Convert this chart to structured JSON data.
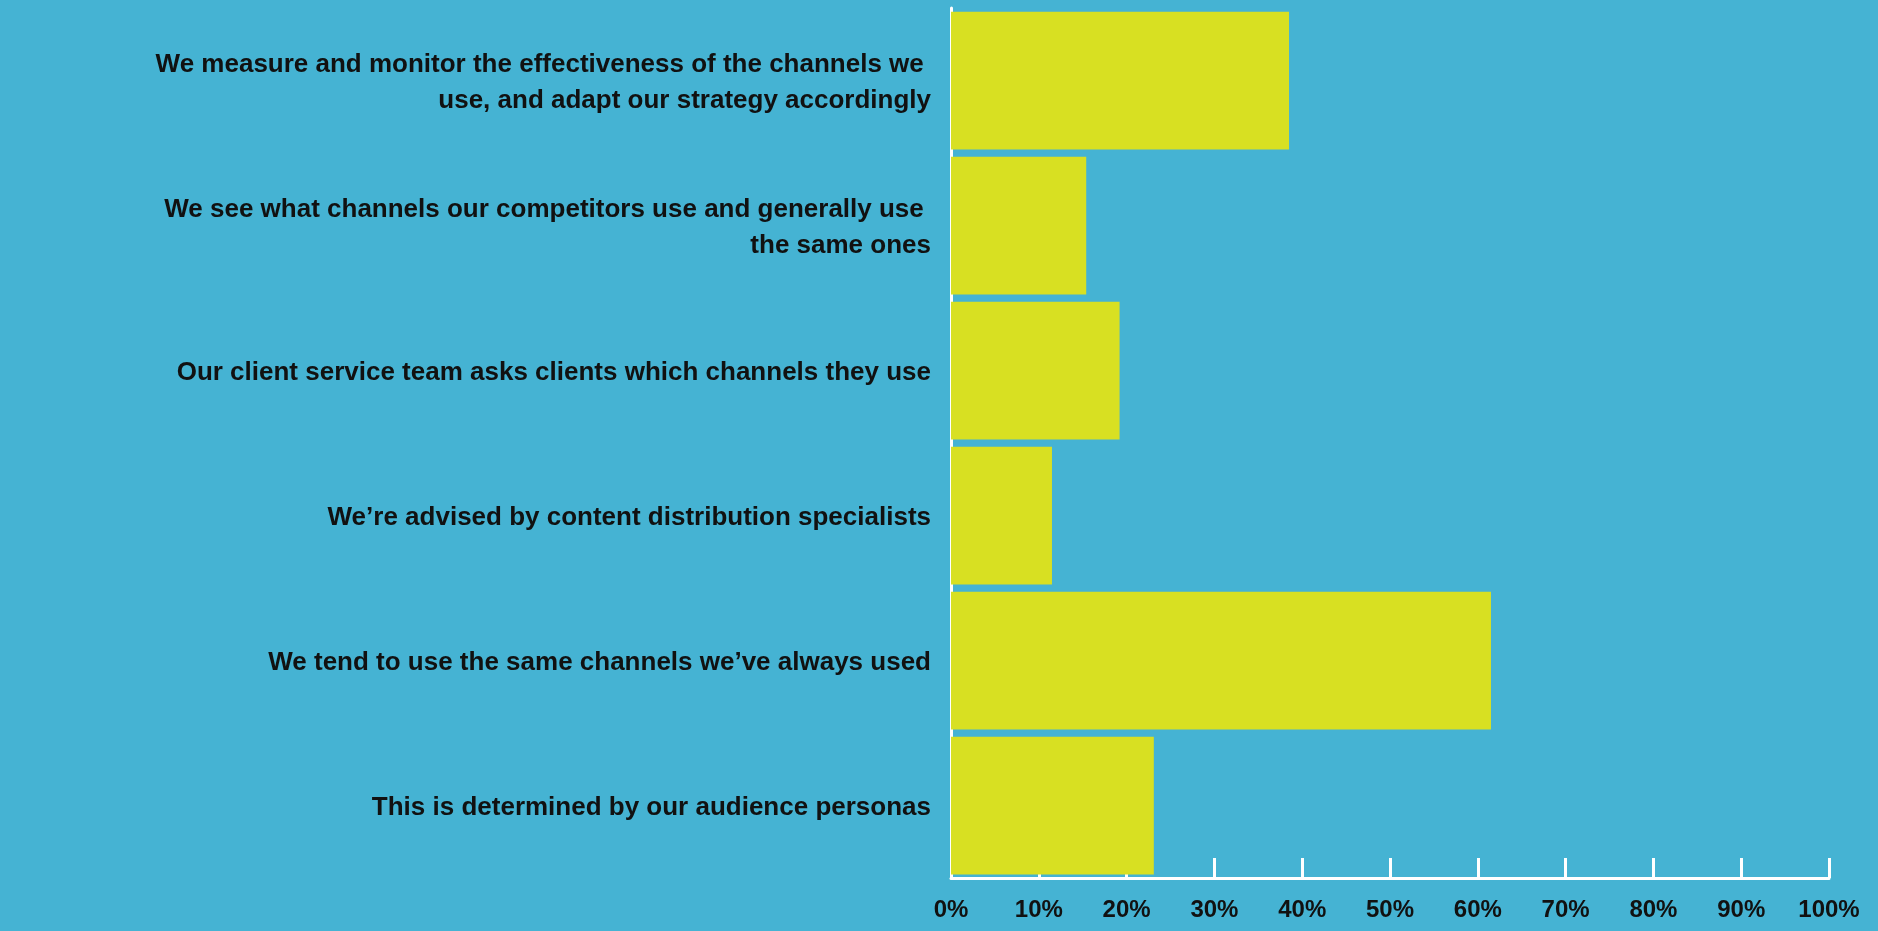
{
  "chart_data": {
    "type": "bar",
    "orientation": "horizontal",
    "categories": [
      "We measure and monitor the effectiveness of the channels we use, and adapt our strategy accordingly",
      "We see what channels our competitors use and generally use the same ones",
      "Our client service team asks clients which channels they use",
      "We’re advised by content distribution specialists",
      "We tend to use the same channels we’ve always used",
      "This is determined by our audience personas"
    ],
    "values": [
      38.5,
      15.4,
      19.2,
      11.5,
      61.5,
      23.1
    ],
    "color": "#d8e022",
    "xlim": [
      0,
      100
    ],
    "xticks": [
      {
        "value": 0,
        "label": "0%"
      },
      {
        "value": 10,
        "label": "10%"
      },
      {
        "value": 20,
        "label": "20%"
      },
      {
        "value": 30,
        "label": "30%"
      },
      {
        "value": 40,
        "label": "40%"
      },
      {
        "value": 50,
        "label": "50%"
      },
      {
        "value": 60,
        "label": "60%"
      },
      {
        "value": 70,
        "label": "70%"
      },
      {
        "value": 80,
        "label": "80%"
      },
      {
        "value": 90,
        "label": "90%"
      },
      {
        "value": 100,
        "label": "100%"
      }
    ],
    "grid": false
  }
}
